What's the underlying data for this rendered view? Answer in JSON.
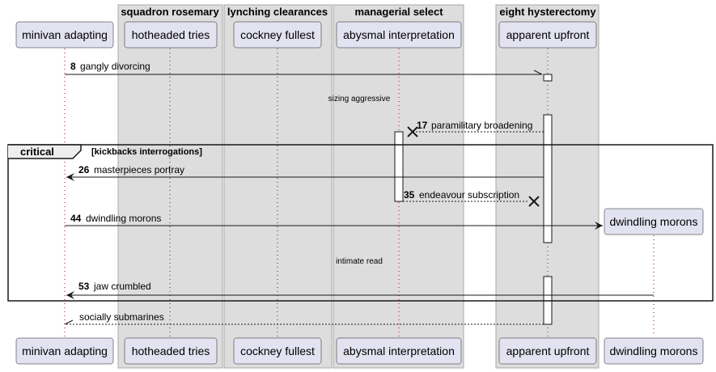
{
  "boxes": [
    {
      "title": "squadron rosemary"
    },
    {
      "title": "lynching clearances"
    },
    {
      "title": "managerial select"
    },
    {
      "title": "eight hysterectomy"
    }
  ],
  "participants": [
    {
      "label": "minivan adapting"
    },
    {
      "label": "hotheaded tries"
    },
    {
      "label": "cockney fullest"
    },
    {
      "label": "abysmal interpretation"
    },
    {
      "label": "apparent upfront"
    },
    {
      "label": "dwindling morons"
    }
  ],
  "messages": [
    {
      "num": "8",
      "text": "gangly divorcing"
    },
    {
      "num": "17",
      "text": "paramilitary broadening"
    },
    {
      "num": "26",
      "text": "masterpieces portray"
    },
    {
      "num": "35",
      "text": "endeavour subscription"
    },
    {
      "num": "44",
      "text": "dwindling morons"
    },
    {
      "num": "53",
      "text": "jaw crumbled"
    },
    {
      "num": "",
      "text": "socially submarines"
    }
  ],
  "dividers": [
    {
      "text": "sizing aggressive"
    },
    {
      "text": "intimate read"
    }
  ],
  "fragment": {
    "kind": "critical",
    "condition": "[kickbacks interrogations]"
  },
  "colors": {
    "box_fill": "#DDDDDD",
    "box_stroke": "#A9A9A9",
    "participant_fill": "#E2E2F0",
    "participant_stroke": "#181818",
    "lifeline": "#A80036",
    "line": "#181818"
  }
}
